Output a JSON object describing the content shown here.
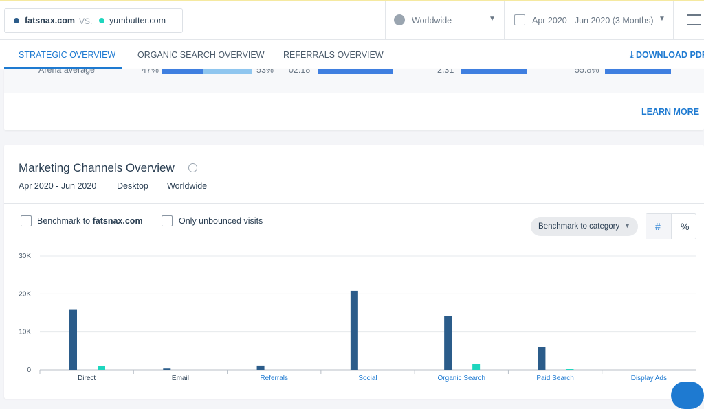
{
  "header": {
    "vs": "VS.",
    "region": "Worldwide",
    "date_range": "Apr 2020 - Jun 2020 (3 Months)"
  },
  "tabs": [
    "STRATEGIC OVERVIEW",
    "ORGANIC SEARCH OVERVIEW",
    "REFERRALS OVERVIEW"
  ],
  "download": "DOWNLOAD PDF",
  "arena": {
    "label": "Arena average",
    "values": [
      "47%",
      "53%",
      "02:18",
      "2.31",
      "55.8%"
    ]
  },
  "learn_more": "LEARN MORE",
  "card": {
    "title": "Marketing Channels Overview",
    "period": "Apr 2020 - Jun 2020",
    "device": "Desktop",
    "region": "Worldwide"
  },
  "controls": {
    "benchmark_label": "Benchmark to",
    "benchmark_site": "fatsnax.com",
    "unbounced": "Only unbounced visits",
    "category": "Benchmark to category",
    "hash": "#",
    "percent": "%"
  },
  "chart_data": {
    "type": "bar",
    "categories": [
      "Direct",
      "Email",
      "Referrals",
      "Social",
      "Organic Search",
      "Paid Search",
      "Display Ads"
    ],
    "series": [
      {
        "name": "fatsnax.com",
        "color": "#2b5c8a",
        "values": [
          15800,
          500,
          1100,
          20800,
          14100,
          6100,
          0
        ]
      },
      {
        "name": "yumbutter.com",
        "color": "#1ed6be",
        "values": [
          1000,
          0,
          0,
          0,
          1500,
          200,
          0
        ]
      }
    ],
    "ylim": [
      0,
      30000
    ],
    "yticks": [
      0,
      {
        "value": 10000,
        "label": "10K"
      },
      {
        "value": 20000,
        "label": "20K"
      },
      {
        "value": 30000,
        "label": "30K"
      }
    ],
    "grid": true
  }
}
